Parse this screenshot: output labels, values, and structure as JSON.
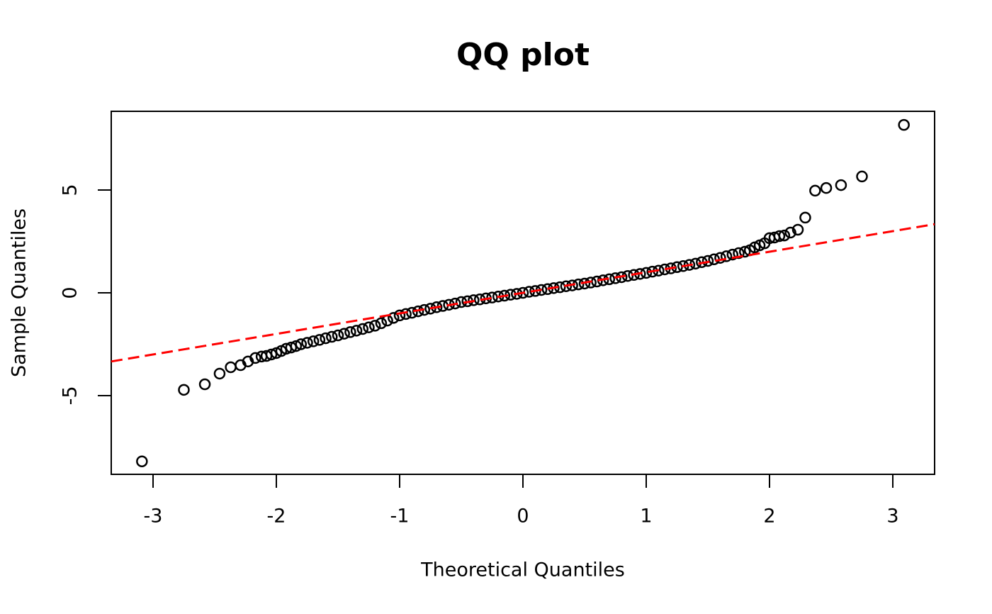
{
  "chart_data": {
    "type": "scatter",
    "title": "QQ plot",
    "x_label": "Theoretical Quantiles",
    "y_label": "Sample Quantiles",
    "xlim": [
      -3.339,
      3.339
    ],
    "ylim": [
      -8.83,
      8.83
    ],
    "xticks": [
      -3,
      -2,
      -1,
      0,
      1,
      2,
      3
    ],
    "yticks": [
      -5,
      0,
      5
    ],
    "grid": false,
    "series": [
      {
        "color": "#000000",
        "x": [
          -3.09,
          -2.75,
          -2.58,
          -2.46,
          -2.37,
          -2.29,
          -2.23,
          -2.17,
          -2.12,
          -2.08,
          -2.04,
          -2.0,
          -1.96,
          -1.92,
          -1.88,
          -1.84,
          -1.8,
          -1.75,
          -1.7,
          -1.65,
          -1.6,
          -1.55,
          -1.5,
          -1.45,
          -1.4,
          -1.35,
          -1.3,
          -1.25,
          -1.2,
          -1.15,
          -1.1,
          -1.05,
          -1.0,
          -0.95,
          -0.9,
          -0.85,
          -0.8,
          -0.75,
          -0.7,
          -0.65,
          -0.6,
          -0.55,
          -0.5,
          -0.45,
          -0.4,
          -0.35,
          -0.3,
          -0.25,
          -0.2,
          -0.15,
          -0.1,
          -0.05,
          0,
          0.05,
          0.1,
          0.15,
          0.2,
          0.25,
          0.3,
          0.35,
          0.4,
          0.45,
          0.5,
          0.55,
          0.6,
          0.65,
          0.7,
          0.75,
          0.8,
          0.85,
          0.9,
          0.95,
          1.0,
          1.05,
          1.1,
          1.15,
          1.2,
          1.25,
          1.3,
          1.35,
          1.4,
          1.45,
          1.5,
          1.55,
          1.6,
          1.65,
          1.7,
          1.75,
          1.8,
          1.84,
          1.88,
          1.92,
          1.96,
          2.0,
          2.04,
          2.08,
          2.12,
          2.17,
          2.23,
          2.29,
          2.37,
          2.46,
          2.58,
          2.75,
          3.09
        ],
        "values": [
          -8.2,
          -4.72,
          -4.45,
          -3.93,
          -3.62,
          -3.52,
          -3.34,
          -3.17,
          -3.1,
          -3.07,
          -3.0,
          -2.93,
          -2.83,
          -2.72,
          -2.66,
          -2.59,
          -2.5,
          -2.43,
          -2.36,
          -2.29,
          -2.21,
          -2.14,
          -2.07,
          -1.99,
          -1.91,
          -1.84,
          -1.76,
          -1.68,
          -1.6,
          -1.48,
          -1.35,
          -1.22,
          -1.1,
          -1.03,
          -0.97,
          -0.9,
          -0.83,
          -0.77,
          -0.7,
          -0.64,
          -0.58,
          -0.52,
          -0.45,
          -0.41,
          -0.36,
          -0.32,
          -0.27,
          -0.23,
          -0.18,
          -0.14,
          -0.09,
          -0.05,
          0,
          0.05,
          0.09,
          0.14,
          0.18,
          0.23,
          0.27,
          0.32,
          0.36,
          0.41,
          0.45,
          0.5,
          0.55,
          0.61,
          0.66,
          0.71,
          0.76,
          0.82,
          0.87,
          0.92,
          0.97,
          1.03,
          1.08,
          1.14,
          1.19,
          1.25,
          1.3,
          1.36,
          1.42,
          1.49,
          1.55,
          1.63,
          1.7,
          1.78,
          1.86,
          1.93,
          2.0,
          2.07,
          2.21,
          2.31,
          2.41,
          2.66,
          2.69,
          2.76,
          2.79,
          2.93,
          3.07,
          3.66,
          4.97,
          5.1,
          5.24,
          5.66,
          8.17
        ]
      }
    ],
    "reference_line": {
      "color": "#ff0000",
      "x": [
        -3.339,
        3.339
      ],
      "values": [
        -3.339,
        3.339
      ]
    }
  }
}
